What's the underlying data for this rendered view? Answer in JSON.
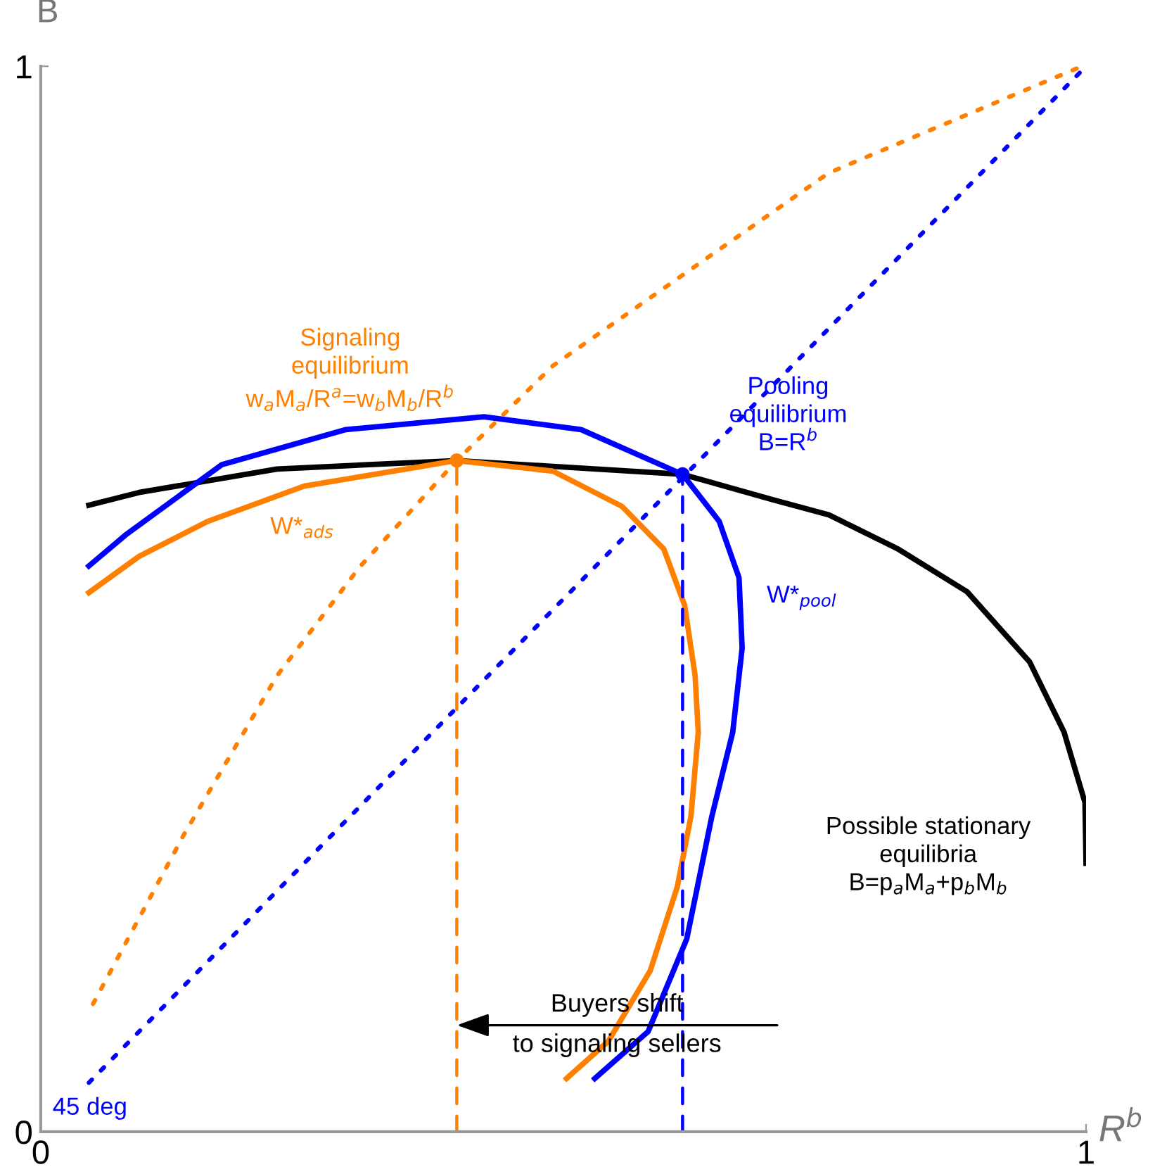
{
  "chart_data": {
    "type": "line",
    "xlabel": "R$^{b}$",
    "ylabel": "B",
    "xlim": [
      0,
      1
    ],
    "ylim": [
      0,
      1
    ],
    "xticks": [
      0,
      1
    ],
    "yticks": [
      0,
      1
    ],
    "grid": false,
    "legend": false,
    "series": [
      {
        "color": "#000000",
        "line_style": "solid",
        "x": [
          0.046,
          0.094,
          0.226,
          0.398,
          0.614,
          0.701,
          0.754,
          0.82,
          0.886,
          0.946,
          0.979,
          0.999,
          1.0
        ],
        "values": [
          0.588,
          0.6,
          0.622,
          0.63,
          0.617,
          0.593,
          0.579,
          0.547,
          0.507,
          0.441,
          0.375,
          0.309,
          0.252
        ]
      },
      {
        "color": "#0000ff",
        "line_style": "solid",
        "x": [
          0.046,
          0.081,
          0.173,
          0.292,
          0.424,
          0.517,
          0.614,
          0.649,
          0.668,
          0.671,
          0.662,
          0.642,
          0.618,
          0.581,
          0.53
        ],
        "values": [
          0.531,
          0.56,
          0.626,
          0.659,
          0.671,
          0.659,
          0.617,
          0.573,
          0.52,
          0.454,
          0.375,
          0.296,
          0.181,
          0.094,
          0.05
        ]
      },
      {
        "color": "#ff8000",
        "line_style": "solid",
        "x": [
          0.046,
          0.094,
          0.16,
          0.252,
          0.398,
          0.49,
          0.556,
          0.596,
          0.616,
          0.626,
          0.629,
          0.622,
          0.609,
          0.583,
          0.543,
          0.503
        ],
        "values": [
          0.506,
          0.54,
          0.573,
          0.606,
          0.63,
          0.62,
          0.587,
          0.547,
          0.494,
          0.428,
          0.375,
          0.296,
          0.23,
          0.151,
          0.085,
          0.05
        ]
      },
      {
        "color": "#ff8000",
        "line_style": "dotted",
        "x": [
          0.05,
          0.137,
          0.226,
          0.305,
          0.398,
          0.49,
          0.754,
          0.996
        ],
        "values": [
          0.12,
          0.279,
          0.428,
          0.53,
          0.63,
          0.719,
          0.9,
          1.0
        ]
      },
      {
        "color": "#0000ff",
        "line_style": "dotted",
        "x": [
          0.046,
          1.0
        ],
        "values": [
          0.046,
          1.0
        ]
      },
      {
        "color": "#ff8000",
        "line_style": "dashed",
        "x": [
          0.398,
          0.398
        ],
        "values": [
          0,
          0.63
        ]
      },
      {
        "color": "#0000ff",
        "line_style": "dashed",
        "x": [
          0.614,
          0.614
        ],
        "values": [
          0,
          0.617
        ]
      },
      {
        "type": "scatter",
        "marker": "circle",
        "color": "#ff8000",
        "x": [
          0.398
        ],
        "values": [
          0.63
        ]
      },
      {
        "type": "scatter",
        "marker": "circle",
        "color": "#0000ff",
        "x": [
          0.614
        ],
        "values": [
          0.617
        ]
      }
    ],
    "annotations": [
      "Signaling\nequilibrium\nw$_{a}$M$_{a}$/R$^{a}$=w$_{b}$M$_{b}$/R$^{b}$",
      "Pooling\nequilibrium\nB=R$^{b}$",
      "W*$_{ads}$",
      "W*$_{pool}$",
      "Possible stationary\nequilibria\nB=p$_{a}$M$_{a}$+p$_{b}$M$_{b}$",
      "45 deg",
      {
        "text": "Buyers shift\nto signaling sellers",
        "x": 0.398,
        "y": 0.1
      }
    ]
  }
}
